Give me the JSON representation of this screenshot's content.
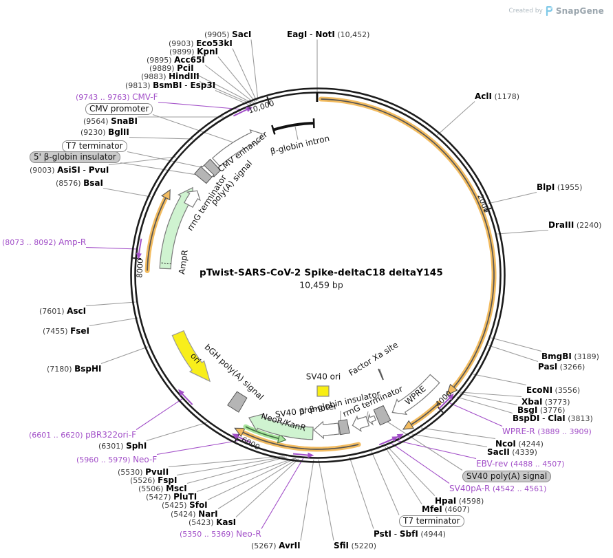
{
  "watermark": {
    "created_by": "Created by",
    "brand": "SnapGene"
  },
  "plasmid": {
    "title": "pTwist-SARS-CoV-2 Spike-deltaC18 deltaY145",
    "length_label": "10,459 bp"
  },
  "labels_meta": {
    "dual_separator": " - "
  },
  "scale_ticks": [
    {
      "label": "2000"
    },
    {
      "label": "4000"
    },
    {
      "label": "6000"
    },
    {
      "label": "8000"
    },
    {
      "label": "10,000"
    }
  ],
  "restriction_sites": [
    {
      "id": "SacI",
      "coord": "(9905)",
      "name": "SacI",
      "coord_first": true
    },
    {
      "id": "Eco53kI",
      "coord": "(9903)",
      "name": "Eco53kI",
      "coord_first": true
    },
    {
      "id": "KpnI",
      "coord": "(9899)",
      "name": "KpnI",
      "coord_first": true
    },
    {
      "id": "Acc65I",
      "coord": "(9895)",
      "name": "Acc65I",
      "coord_first": true
    },
    {
      "id": "PciI",
      "coord": "(9889)",
      "name": "PciI",
      "coord_first": true
    },
    {
      "id": "HindIII",
      "coord": "(9883)",
      "name": "HindIII",
      "coord_first": true
    },
    {
      "id": "BsmBI",
      "coord": "(9813)",
      "name": "BsmBI",
      "name2": "Esp3I",
      "coord_first": true
    },
    {
      "id": "SnaBI",
      "coord": "(9564)",
      "name": "SnaBI",
      "coord_first": true
    },
    {
      "id": "BglII",
      "coord": "(9230)",
      "name": "BglII",
      "coord_first": true
    },
    {
      "id": "AsiSI",
      "coord": "(9003)",
      "name": "AsiSI",
      "name2": "PvuI",
      "coord_first": true
    },
    {
      "id": "BsaI",
      "coord": "(8576)",
      "name": "BsaI",
      "coord_first": true
    },
    {
      "id": "AscI",
      "coord": "(7601)",
      "name": "AscI",
      "coord_first": true
    },
    {
      "id": "FseI",
      "coord": "(7455)",
      "name": "FseI",
      "coord_first": true
    },
    {
      "id": "BspHI",
      "coord": "(7180)",
      "name": "BspHI",
      "coord_first": true
    },
    {
      "id": "SphI",
      "coord": "(6301)",
      "name": "SphI",
      "coord_first": true
    },
    {
      "id": "PvuII",
      "coord": "(5530)",
      "name": "PvuII",
      "coord_first": true
    },
    {
      "id": "FspI",
      "coord": "(5526)",
      "name": "FspI",
      "coord_first": true
    },
    {
      "id": "MscI",
      "coord": "(5506)",
      "name": "MscI",
      "coord_first": true
    },
    {
      "id": "PluTI",
      "coord": "(5427)",
      "name": "PluTI",
      "coord_first": true
    },
    {
      "id": "SfoI",
      "coord": "(5425)",
      "name": "SfoI",
      "coord_first": true
    },
    {
      "id": "NarI",
      "coord": "(5424)",
      "name": "NarI",
      "coord_first": true
    },
    {
      "id": "KasI",
      "coord": "(5423)",
      "name": "KasI",
      "coord_first": true
    },
    {
      "id": "AvrII",
      "coord": "(5267)",
      "name": "AvrII",
      "coord_first": true
    },
    {
      "id": "EagI",
      "name": "EagI",
      "name2": "NotI",
      "coord": "(10,452)",
      "coord_first": false
    },
    {
      "id": "AclI",
      "name": "AclI",
      "coord": "(1178)",
      "coord_first": false
    },
    {
      "id": "BlpI",
      "name": "BlpI",
      "coord": "(1955)",
      "coord_first": false
    },
    {
      "id": "DraIII",
      "name": "DraIII",
      "coord": "(2240)",
      "coord_first": false
    },
    {
      "id": "BmgBI",
      "name": "BmgBI",
      "coord": "(3189)",
      "coord_first": false
    },
    {
      "id": "PasI",
      "name": "PasI",
      "coord": "(3266)",
      "coord_first": false
    },
    {
      "id": "EcoNI",
      "name": "EcoNI",
      "coord": "(3556)",
      "coord_first": false
    },
    {
      "id": "XbaI",
      "name": "XbaI",
      "coord": "(3773)",
      "coord_first": false
    },
    {
      "id": "BsgI",
      "name": "BsgI",
      "coord": "(3776)",
      "coord_first": false
    },
    {
      "id": "BspDI",
      "name": "BspDI",
      "name2": "ClaI",
      "coord": "(3813)",
      "coord_first": false
    },
    {
      "id": "NcoI",
      "name": "NcoI",
      "coord": "(4244)",
      "coord_first": false
    },
    {
      "id": "SacII",
      "name": "SacII",
      "coord": "(4339)",
      "coord_first": false
    },
    {
      "id": "HpaI",
      "name": "HpaI",
      "coord": "(4598)",
      "coord_first": false
    },
    {
      "id": "MfeI",
      "name": "MfeI",
      "coord": "(4607)",
      "coord_first": false
    },
    {
      "id": "PstI",
      "name": "PstI",
      "name2": "SbfI",
      "coord": "(4944)",
      "coord_first": false
    },
    {
      "id": "SfiI",
      "name": "SfiI",
      "coord": "(5220)",
      "coord_first": false
    }
  ],
  "primers": [
    {
      "id": "CMV-F",
      "name": "CMV-F",
      "range": "(9743 .. 9763)",
      "range_first": true
    },
    {
      "id": "Amp-R",
      "name": "Amp-R",
      "range": "(8073 .. 8092)",
      "range_first": true
    },
    {
      "id": "pBR322ori-F",
      "name": "pBR322ori-F",
      "range": "(6601 .. 6620)",
      "range_first": true
    },
    {
      "id": "Neo-F",
      "name": "Neo-F",
      "range": "(5960 .. 5979)",
      "range_first": true
    },
    {
      "id": "Neo-R",
      "name": "Neo-R",
      "range": "(5350 .. 5369)",
      "range_first": true
    },
    {
      "id": "WPRE-R",
      "name": "WPRE-R",
      "range": "(3889 .. 3909)",
      "range_first": false
    },
    {
      "id": "EBV-rev",
      "name": "EBV-rev",
      "range": "(4488 .. 4507)",
      "range_first": false
    },
    {
      "id": "SV40pA-R",
      "name": "SV40pA-R",
      "range": "(4542 .. 4561)",
      "range_first": false
    }
  ],
  "boxed_labels": [
    {
      "id": "cmv-promoter",
      "text": "CMV promoter",
      "filled": false
    },
    {
      "id": "t7-top",
      "text": "T7 terminator",
      "filled": false
    },
    {
      "id": "five-insulator",
      "text": "5' β-globin insulator",
      "filled": true
    },
    {
      "id": "sv40-polya",
      "text": "SV40 poly(A) signal",
      "filled": true
    },
    {
      "id": "t7-bottom",
      "text": "T7 terminator",
      "filled": false
    }
  ],
  "feature_labels": [
    {
      "id": "cmv-enhancer",
      "text": "CMV enhancer"
    },
    {
      "id": "polya-signal",
      "text": "poly(A) signal"
    },
    {
      "id": "rrng-top",
      "text": "rrnG terminator"
    },
    {
      "id": "beta-intron",
      "text": "β-globin intron"
    },
    {
      "id": "ampr",
      "text": "AmpR"
    },
    {
      "id": "ori",
      "text": "ori"
    },
    {
      "id": "bgh-polya",
      "text": "bGH poly(A) signal"
    },
    {
      "id": "neor-kanr",
      "text": "NeoR/KanR"
    },
    {
      "id": "sv40-promoter",
      "text": "SV40 promoter"
    },
    {
      "id": "three-insulator",
      "text": "3' β-globin insulator"
    },
    {
      "id": "rrng-bottom",
      "text": "rrnG terminator"
    },
    {
      "id": "wpre",
      "text": "WPRE"
    },
    {
      "id": "sv40-ori",
      "text": "SV40 ori"
    },
    {
      "id": "factor-xa",
      "text": "Factor Xa site"
    }
  ],
  "colors": {
    "ring": "#1C1C1C",
    "orf_halo": "#F3BC60",
    "orf_core": "#555555",
    "green_halo": "#A9E59E",
    "green_core": "#3F6E3F",
    "cds_green": "#CFF3D0",
    "ori_yellow": "#F8EE1B",
    "sv40ori_yellow": "#F8EE13",
    "feature_gray": "#B5B5B5",
    "primer_purple": "#A24FC8",
    "pointer_gray": "#9B9B9B"
  }
}
